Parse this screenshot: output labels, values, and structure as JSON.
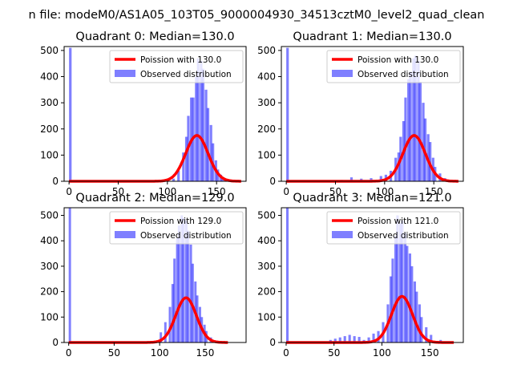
{
  "figure": {
    "suptitle": "n file: modeM0/AS1A05_103T05_9000004930_34513cztM0_level2_quad_clean"
  },
  "colors": {
    "hist": "#0000ff",
    "hist_opacity": 0.5,
    "fit": "#ff0000",
    "axis": "#000000",
    "legend_edge": "#cccccc"
  },
  "chart_data": [
    {
      "type": "bar",
      "title": "Quadrant 0: Median=130.0",
      "legend": [
        "Poission with 130.0",
        "Observed distribution"
      ],
      "legend_position": "upper right",
      "xlim": [
        -5,
        180
      ],
      "ylim": [
        0,
        515
      ],
      "xticks": [
        0,
        50,
        100,
        150
      ],
      "yticks": [
        0,
        100,
        200,
        300,
        400,
        500
      ],
      "poisson_mean": 130.0,
      "poisson_scale": 5000,
      "hist_x": [
        0,
        105,
        110,
        115,
        118,
        120,
        123,
        125,
        128,
        130,
        133,
        135,
        138,
        140,
        143,
        145,
        148,
        150,
        153,
        155,
        158,
        160
      ],
      "hist_counts": [
        510,
        10,
        40,
        110,
        170,
        250,
        320,
        320,
        400,
        470,
        460,
        430,
        350,
        280,
        215,
        145,
        80,
        45,
        25,
        10,
        8,
        4
      ]
    },
    {
      "type": "bar",
      "title": "Quadrant 1: Median=130.0",
      "legend": [
        "Poission with 130.0",
        "Observed distribution"
      ],
      "legend_position": "upper right",
      "xlim": [
        -5,
        180
      ],
      "ylim": [
        0,
        515
      ],
      "xticks": [
        0,
        50,
        100,
        150
      ],
      "yticks": [
        0,
        100,
        200,
        300,
        400,
        500
      ],
      "poisson_mean": 130.0,
      "poisson_scale": 5000,
      "hist_x": [
        0,
        55,
        65,
        75,
        85,
        95,
        100,
        105,
        110,
        113,
        115,
        118,
        120,
        123,
        125,
        128,
        130,
        133,
        135,
        138,
        140,
        143,
        145,
        148,
        150,
        155,
        160
      ],
      "hist_counts": [
        510,
        5,
        15,
        10,
        12,
        20,
        25,
        40,
        90,
        110,
        170,
        230,
        320,
        390,
        420,
        470,
        480,
        460,
        380,
        300,
        240,
        180,
        150,
        90,
        55,
        30,
        12
      ]
    },
    {
      "type": "bar",
      "title": "Quadrant 2: Median=129.0",
      "legend": [
        "Poission with 129.0",
        "Observed distribution"
      ],
      "legend_position": "upper right",
      "xlim": [
        -5,
        195
      ],
      "ylim": [
        0,
        530
      ],
      "xticks": [
        0,
        50,
        100,
        150
      ],
      "yticks": [
        0,
        100,
        200,
        300,
        400,
        500
      ],
      "poisson_mean": 129.0,
      "poisson_scale": 5000,
      "hist_x": [
        0,
        100,
        105,
        110,
        113,
        115,
        118,
        120,
        123,
        125,
        128,
        130,
        133,
        135,
        138,
        140,
        143,
        145,
        148,
        150,
        155,
        160
      ],
      "hist_counts": [
        530,
        40,
        80,
        140,
        230,
        330,
        410,
        460,
        500,
        490,
        480,
        440,
        385,
        310,
        240,
        185,
        140,
        100,
        70,
        45,
        20,
        8
      ]
    },
    {
      "type": "bar",
      "title": "Quadrant 3: Median=121.0",
      "legend": [
        "Poission with 121.0",
        "Observed distribution"
      ],
      "legend_position": "upper right",
      "xlim": [
        -5,
        185
      ],
      "ylim": [
        0,
        530
      ],
      "xticks": [
        0,
        50,
        100,
        150
      ],
      "yticks": [
        0,
        100,
        200,
        300,
        400,
        500
      ],
      "poisson_mean": 121.0,
      "poisson_scale": 5000,
      "hist_x": [
        0,
        45,
        50,
        55,
        60,
        65,
        70,
        75,
        80,
        85,
        90,
        95,
        100,
        105,
        108,
        110,
        113,
        115,
        118,
        120,
        123,
        125,
        128,
        130,
        133,
        135,
        138,
        140,
        145,
        150,
        160
      ],
      "hist_counts": [
        530,
        10,
        15,
        20,
        25,
        30,
        25,
        22,
        10,
        20,
        35,
        45,
        80,
        150,
        260,
        330,
        420,
        500,
        470,
        480,
        430,
        380,
        350,
        300,
        240,
        200,
        150,
        100,
        60,
        30,
        10
      ]
    }
  ]
}
